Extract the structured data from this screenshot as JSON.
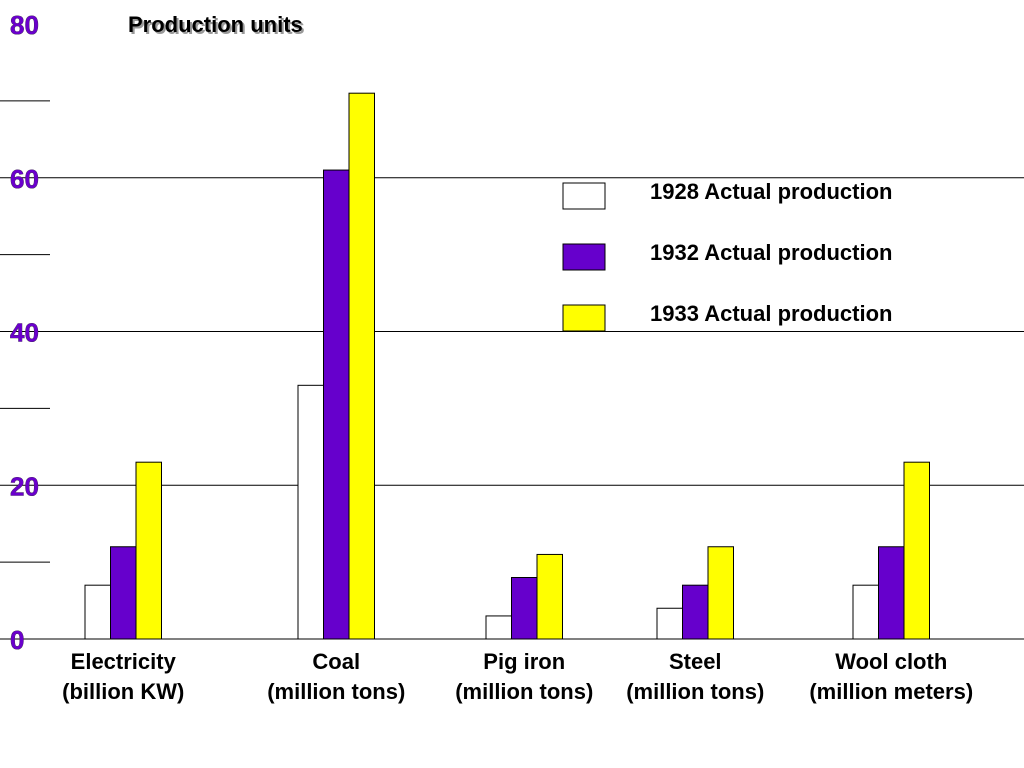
{
  "chart_data": {
    "type": "bar",
    "title": "Production units",
    "categories": [
      [
        "Electricity",
        "(billion KW)"
      ],
      [
        "Coal",
        "(million tons)"
      ],
      [
        "Pig iron",
        "(million tons)"
      ],
      [
        "Steel",
        "(million tons)"
      ],
      [
        "Wool cloth",
        "(million meters)"
      ]
    ],
    "series": [
      {
        "name": "1928 Actual production",
        "color": "#ffffff",
        "values": [
          7,
          33,
          3,
          4,
          7
        ]
      },
      {
        "name": "1932 Actual production",
        "color": "#6600cc",
        "values": [
          12,
          61,
          8,
          7,
          12
        ]
      },
      {
        "name": "1933 Actual production",
        "color": "#ffff00",
        "values": [
          23,
          71,
          11,
          12,
          23
        ]
      }
    ],
    "yticks": [
      "0",
      "20",
      "40",
      "60",
      "80"
    ],
    "ylim": [
      0,
      80
    ],
    "grid": true,
    "legend_position": "right"
  }
}
